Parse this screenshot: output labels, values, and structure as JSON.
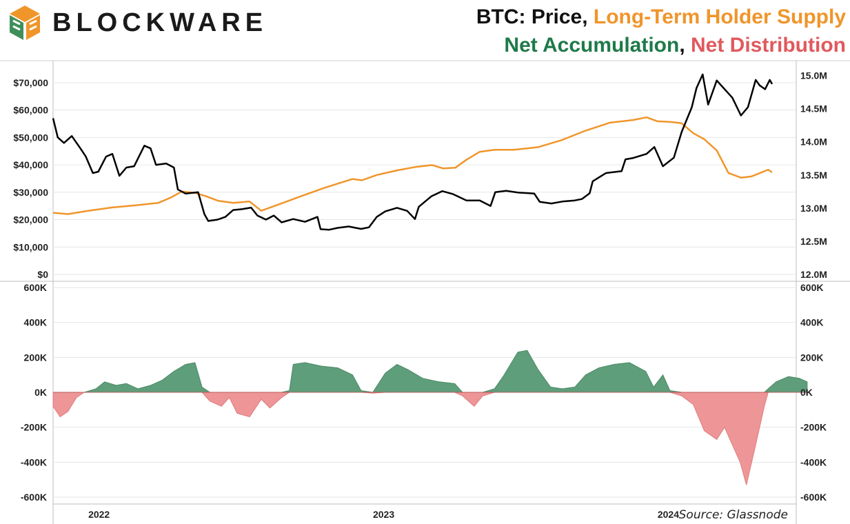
{
  "header": {
    "brand": "BLOCKWARE",
    "title_line1": {
      "part1": "BTC: Price",
      "sep1": ", ",
      "part2": "Long-Term Holder Supply"
    },
    "title_line2": {
      "part1": "Net Accumulation",
      "sep1": ", ",
      "part2": "Net Distribution"
    }
  },
  "colors": {
    "price": "#000000",
    "lth_supply": "#f0952a",
    "accumulation": "#5e9e7a",
    "distribution": "#ee9697",
    "title_green": "#1e7a4a",
    "title_red": "#e0595e",
    "title_orange": "#f0952a",
    "logo_orange": "#f0952a",
    "logo_green": "#3f8f5a"
  },
  "source": "Source: Glassnode",
  "chart_data": [
    {
      "type": "line",
      "title": "",
      "x_domain": [
        "2021-12-01",
        "2024-06-10"
      ],
      "x_tick_labels": [
        "2022",
        "2023",
        "2024"
      ],
      "x_tick_dates": [
        "2022-01-01",
        "2023-01-01",
        "2024-01-01"
      ],
      "y_left": {
        "label": "",
        "ylim": [
          0,
          75000
        ],
        "ticks": [
          0,
          10000,
          20000,
          30000,
          40000,
          50000,
          60000,
          70000
        ],
        "tick_labels": [
          "$0",
          "$10,000",
          "$20,000",
          "$30,000",
          "$40,000",
          "$50,000",
          "$60,000",
          "$70,000"
        ]
      },
      "y_right": {
        "label": "",
        "ylim": [
          12000000,
          15100000
        ],
        "ticks": [
          12000000,
          12500000,
          13000000,
          13500000,
          14000000,
          14500000,
          15000000
        ],
        "tick_labels": [
          "12.0M",
          "12.5M",
          "13.0M",
          "13.5M",
          "14.0M",
          "14.5M",
          "15.0M"
        ]
      },
      "grid": true,
      "series": [
        {
          "axis": "left",
          "points": [
            [
              "2021-12-01",
              57000
            ],
            [
              "2021-12-07",
              50000
            ],
            [
              "2021-12-15",
              48000
            ],
            [
              "2021-12-25",
              50500
            ],
            [
              "2022-01-05",
              46000
            ],
            [
              "2022-01-12",
              43000
            ],
            [
              "2022-01-21",
              37000
            ],
            [
              "2022-01-28",
              37500
            ],
            [
              "2022-02-07",
              43000
            ],
            [
              "2022-02-15",
              44000
            ],
            [
              "2022-02-24",
              36000
            ],
            [
              "2022-03-05",
              39000
            ],
            [
              "2022-03-15",
              39500
            ],
            [
              "2022-03-28",
              47000
            ],
            [
              "2022-04-05",
              46000
            ],
            [
              "2022-04-12",
              40000
            ],
            [
              "2022-04-25",
              40500
            ],
            [
              "2022-05-05",
              39000
            ],
            [
              "2022-05-10",
              31000
            ],
            [
              "2022-05-20",
              29500
            ],
            [
              "2022-06-05",
              30000
            ],
            [
              "2022-06-13",
              22000
            ],
            [
              "2022-06-18",
              19500
            ],
            [
              "2022-06-30",
              20000
            ],
            [
              "2022-07-10",
              21000
            ],
            [
              "2022-07-20",
              23500
            ],
            [
              "2022-07-31",
              23800
            ],
            [
              "2022-08-12",
              24400
            ],
            [
              "2022-08-20",
              21500
            ],
            [
              "2022-08-31",
              20000
            ],
            [
              "2022-09-10",
              21500
            ],
            [
              "2022-09-20",
              19000
            ],
            [
              "2022-10-05",
              20200
            ],
            [
              "2022-10-20",
              19200
            ],
            [
              "2022-11-05",
              21000
            ],
            [
              "2022-11-09",
              16500
            ],
            [
              "2022-11-20",
              16300
            ],
            [
              "2022-12-01",
              17000
            ],
            [
              "2022-12-15",
              17500
            ],
            [
              "2022-12-31",
              16600
            ],
            [
              "2023-01-10",
              17200
            ],
            [
              "2023-01-20",
              21000
            ],
            [
              "2023-01-31",
              23000
            ],
            [
              "2023-02-15",
              24300
            ],
            [
              "2023-02-28",
              23200
            ],
            [
              "2023-03-10",
              20200
            ],
            [
              "2023-03-15",
              24700
            ],
            [
              "2023-03-31",
              28500
            ],
            [
              "2023-04-14",
              30400
            ],
            [
              "2023-04-28",
              29300
            ],
            [
              "2023-05-15",
              27000
            ],
            [
              "2023-06-01",
              27000
            ],
            [
              "2023-06-15",
              25000
            ],
            [
              "2023-06-21",
              30000
            ],
            [
              "2023-07-05",
              30500
            ],
            [
              "2023-07-20",
              29900
            ],
            [
              "2023-08-10",
              29500
            ],
            [
              "2023-08-17",
              26500
            ],
            [
              "2023-09-01",
              25900
            ],
            [
              "2023-09-15",
              26600
            ],
            [
              "2023-10-01",
              27000
            ],
            [
              "2023-10-10",
              27500
            ],
            [
              "2023-10-20",
              29600
            ],
            [
              "2023-10-24",
              34000
            ],
            [
              "2023-11-10",
              37000
            ],
            [
              "2023-11-30",
              37700
            ],
            [
              "2023-12-05",
              42000
            ],
            [
              "2023-12-15",
              42500
            ],
            [
              "2024-01-01",
              44000
            ],
            [
              "2024-01-11",
              46500
            ],
            [
              "2024-01-22",
              39500
            ],
            [
              "2024-02-05",
              42600
            ],
            [
              "2024-02-15",
              52000
            ],
            [
              "2024-02-28",
              61000
            ],
            [
              "2024-03-05",
              68000
            ],
            [
              "2024-03-13",
              73000
            ],
            [
              "2024-03-20",
              62000
            ],
            [
              "2024-03-31",
              70800
            ],
            [
              "2024-04-12",
              67000
            ],
            [
              "2024-04-20",
              64500
            ],
            [
              "2024-05-01",
              58000
            ],
            [
              "2024-05-10",
              61000
            ],
            [
              "2024-05-20",
              71000
            ],
            [
              "2024-05-25",
              69000
            ],
            [
              "2024-06-01",
              67600
            ],
            [
              "2024-06-07",
              71000
            ],
            [
              "2024-06-10",
              69500
            ]
          ]
        },
        {
          "axis": "right",
          "points": [
            [
              "2021-12-01",
              12930000
            ],
            [
              "2021-12-20",
              12910000
            ],
            [
              "2022-01-15",
              12960000
            ],
            [
              "2022-02-15",
              13010000
            ],
            [
              "2022-03-15",
              13040000
            ],
            [
              "2022-04-15",
              13080000
            ],
            [
              "2022-05-01",
              13160000
            ],
            [
              "2022-05-15",
              13250000
            ],
            [
              "2022-06-01",
              13230000
            ],
            [
              "2022-06-15",
              13180000
            ],
            [
              "2022-07-01",
              13110000
            ],
            [
              "2022-07-20",
              13080000
            ],
            [
              "2022-08-10",
              13100000
            ],
            [
              "2022-08-25",
              12960000
            ],
            [
              "2022-09-15",
              13050000
            ],
            [
              "2022-10-15",
              13180000
            ],
            [
              "2022-11-15",
              13310000
            ],
            [
              "2022-12-20",
              13440000
            ],
            [
              "2023-01-01",
              13420000
            ],
            [
              "2023-01-20",
              13500000
            ],
            [
              "2023-02-15",
              13570000
            ],
            [
              "2023-03-10",
              13620000
            ],
            [
              "2023-04-01",
              13650000
            ],
            [
              "2023-04-15",
              13600000
            ],
            [
              "2023-05-01",
              13610000
            ],
            [
              "2023-05-15",
              13730000
            ],
            [
              "2023-06-01",
              13850000
            ],
            [
              "2023-06-20",
              13880000
            ],
            [
              "2023-07-15",
              13880000
            ],
            [
              "2023-08-15",
              13920000
            ],
            [
              "2023-09-15",
              14030000
            ],
            [
              "2023-10-15",
              14170000
            ],
            [
              "2023-11-15",
              14290000
            ],
            [
              "2023-12-01",
              14310000
            ],
            [
              "2023-12-15",
              14330000
            ],
            [
              "2024-01-01",
              14370000
            ],
            [
              "2024-01-15",
              14310000
            ],
            [
              "2024-02-01",
              14300000
            ],
            [
              "2024-02-15",
              14280000
            ],
            [
              "2024-03-01",
              14130000
            ],
            [
              "2024-03-15",
              14040000
            ],
            [
              "2024-03-31",
              13870000
            ],
            [
              "2024-04-15",
              13530000
            ],
            [
              "2024-05-01",
              13460000
            ],
            [
              "2024-05-15",
              13480000
            ],
            [
              "2024-06-05",
              13580000
            ],
            [
              "2024-06-10",
              13540000
            ]
          ]
        }
      ]
    },
    {
      "type": "area",
      "title": "",
      "x_domain": [
        "2021-12-01",
        "2024-06-10"
      ],
      "ylim": [
        -600000,
        600000
      ],
      "ticks": [
        -600000,
        -400000,
        -200000,
        0,
        200000,
        400000,
        600000
      ],
      "tick_labels": [
        "-600K",
        "-400K",
        "-200K",
        "0K",
        "200K",
        "400K",
        "600K"
      ],
      "grid": true,
      "points": [
        [
          "2021-12-01",
          -80000
        ],
        [
          "2021-12-10",
          -140000
        ],
        [
          "2021-12-20",
          -110000
        ],
        [
          "2021-12-31",
          -30000
        ],
        [
          "2022-01-10",
          0
        ],
        [
          "2022-01-25",
          20000
        ],
        [
          "2022-02-05",
          60000
        ],
        [
          "2022-02-20",
          40000
        ],
        [
          "2022-03-05",
          50000
        ],
        [
          "2022-03-20",
          20000
        ],
        [
          "2022-04-05",
          40000
        ],
        [
          "2022-04-20",
          70000
        ],
        [
          "2022-05-05",
          120000
        ],
        [
          "2022-05-20",
          160000
        ],
        [
          "2022-06-01",
          170000
        ],
        [
          "2022-06-10",
          30000
        ],
        [
          "2022-06-20",
          -50000
        ],
        [
          "2022-07-05",
          -80000
        ],
        [
          "2022-07-15",
          -30000
        ],
        [
          "2022-07-25",
          -120000
        ],
        [
          "2022-08-10",
          -140000
        ],
        [
          "2022-08-25",
          -40000
        ],
        [
          "2022-09-05",
          -90000
        ],
        [
          "2022-09-20",
          -30000
        ],
        [
          "2022-09-30",
          10000
        ],
        [
          "2022-10-05",
          160000
        ],
        [
          "2022-10-20",
          170000
        ],
        [
          "2022-11-10",
          150000
        ],
        [
          "2022-12-01",
          140000
        ],
        [
          "2022-12-20",
          100000
        ],
        [
          "2022-12-31",
          10000
        ],
        [
          "2023-01-15",
          -5000
        ],
        [
          "2023-01-31",
          110000
        ],
        [
          "2023-02-15",
          160000
        ],
        [
          "2023-03-01",
          130000
        ],
        [
          "2023-03-20",
          80000
        ],
        [
          "2023-04-10",
          60000
        ],
        [
          "2023-04-30",
          50000
        ],
        [
          "2023-05-10",
          -20000
        ],
        [
          "2023-05-25",
          -80000
        ],
        [
          "2023-06-05",
          -20000
        ],
        [
          "2023-06-20",
          20000
        ],
        [
          "2023-07-01",
          90000
        ],
        [
          "2023-07-20",
          230000
        ],
        [
          "2023-08-01",
          240000
        ],
        [
          "2023-08-15",
          130000
        ],
        [
          "2023-08-31",
          30000
        ],
        [
          "2023-09-15",
          20000
        ],
        [
          "2023-10-01",
          30000
        ],
        [
          "2023-10-15",
          100000
        ],
        [
          "2023-11-01",
          140000
        ],
        [
          "2023-11-20",
          160000
        ],
        [
          "2023-12-10",
          170000
        ],
        [
          "2023-12-31",
          120000
        ],
        [
          "2024-01-10",
          30000
        ],
        [
          "2024-01-22",
          100000
        ],
        [
          "2024-01-31",
          10000
        ],
        [
          "2024-02-15",
          -20000
        ],
        [
          "2024-03-01",
          -70000
        ],
        [
          "2024-03-15",
          -220000
        ],
        [
          "2024-03-31",
          -270000
        ],
        [
          "2024-04-10",
          -200000
        ],
        [
          "2024-04-30",
          -400000
        ],
        [
          "2024-05-08",
          -530000
        ],
        [
          "2024-05-20",
          -300000
        ],
        [
          "2024-05-31",
          -80000
        ],
        [
          "2024-06-05",
          20000
        ],
        [
          "2024-06-15",
          60000
        ],
        [
          "2024-07-01",
          90000
        ],
        [
          "2024-07-15",
          80000
        ],
        [
          "2024-07-25",
          60000
        ]
      ]
    }
  ]
}
